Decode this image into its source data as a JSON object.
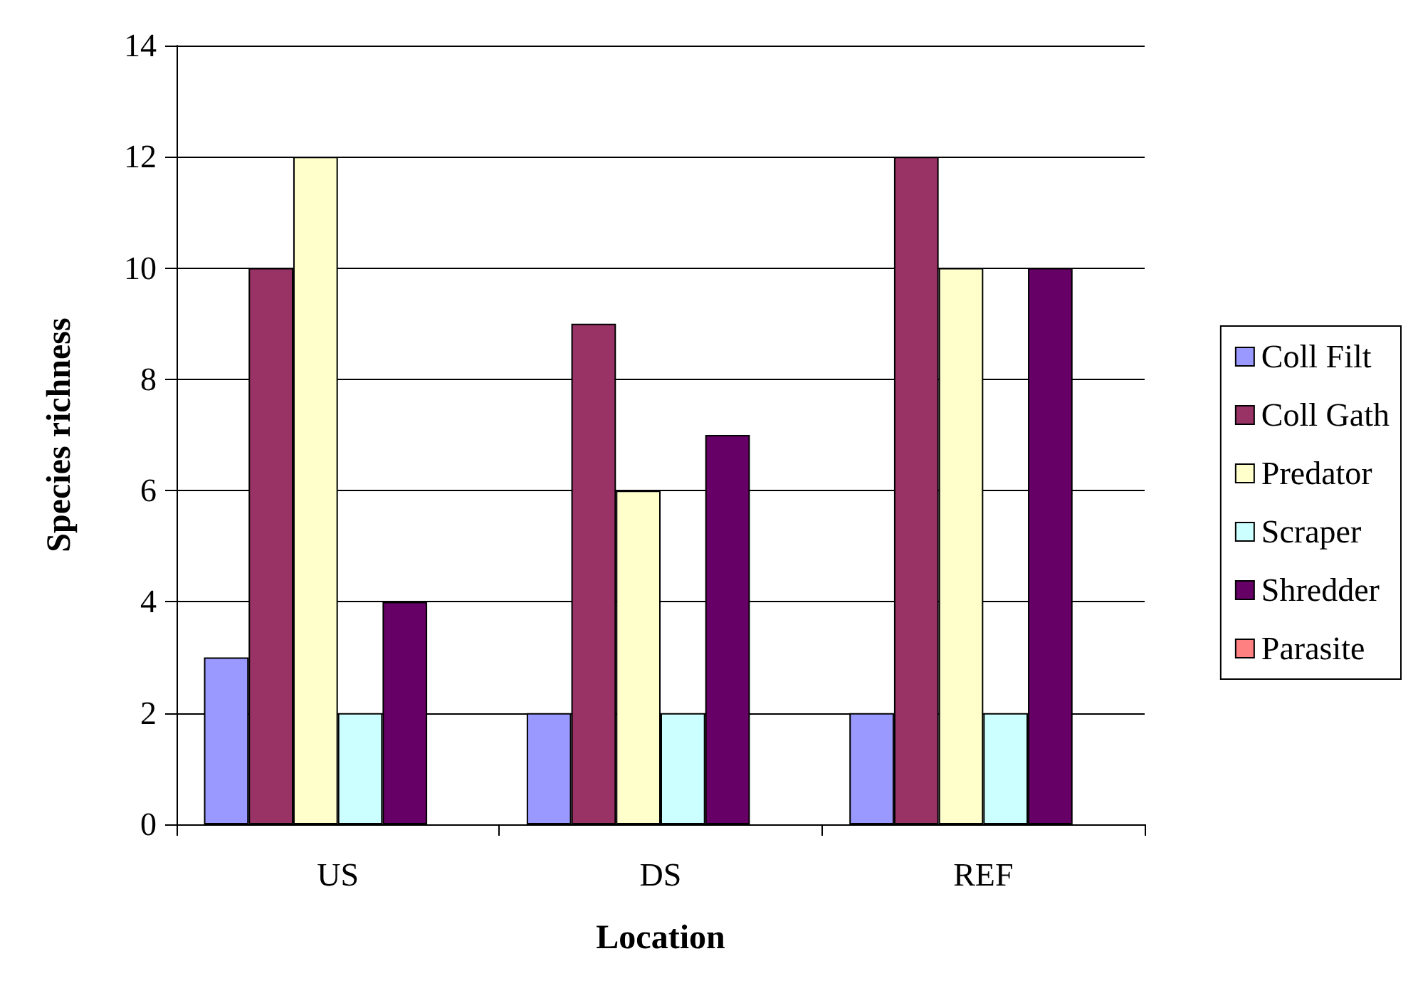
{
  "chart_data": {
    "type": "bar",
    "xlabel": "Location",
    "ylabel": "Species richness",
    "categories": [
      "US",
      "DS",
      "REF"
    ],
    "series": [
      {
        "name": "Coll Filt",
        "color": "#9999ff",
        "values": [
          3,
          2,
          2
        ]
      },
      {
        "name": "Coll Gath",
        "color": "#993366",
        "values": [
          10,
          9,
          12
        ]
      },
      {
        "name": "Predator",
        "color": "#ffffcc",
        "values": [
          12,
          6,
          10
        ]
      },
      {
        "name": "Scraper",
        "color": "#ccffff",
        "values": [
          2,
          2,
          2
        ]
      },
      {
        "name": "Shredder",
        "color": "#660066",
        "values": [
          4,
          7,
          10
        ]
      },
      {
        "name": "Parasite",
        "color": "#ff8080",
        "values": [
          0,
          0,
          0
        ]
      }
    ],
    "ylim": [
      0,
      14
    ],
    "yticks": [
      0,
      2,
      4,
      6,
      8,
      10,
      12,
      14
    ],
    "grid": "y",
    "legend": "right"
  }
}
